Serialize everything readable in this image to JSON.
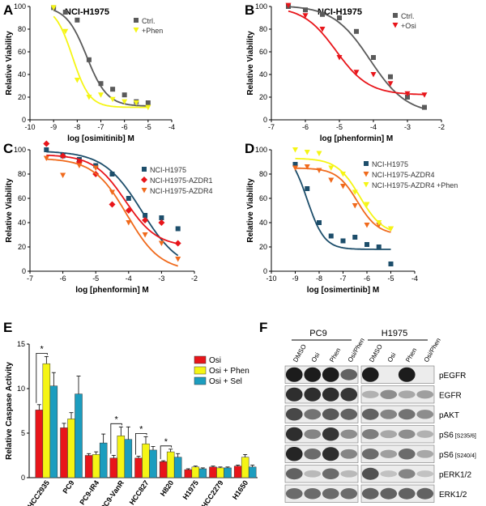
{
  "chart_data": [
    {
      "panel": "A",
      "type": "scatter",
      "title": "NCI-H1975",
      "xlabel": "log [osimitinib] M",
      "ylabel": "Relative Viability",
      "xlim": [
        -10,
        -4
      ],
      "ylim": [
        0,
        100
      ],
      "xticks": [
        "-10",
        "-9",
        "-8",
        "-7",
        "-6",
        "-5",
        "-4"
      ],
      "yticks": [
        "0",
        "20",
        "40",
        "60",
        "80",
        "100"
      ],
      "series": [
        {
          "name": "Ctrl.",
          "color": "#5a5a5a",
          "marker": "square",
          "x": [
            -9,
            -8.5,
            -8,
            -7.5,
            -7,
            -6.5,
            -6,
            -5.5,
            -5
          ],
          "y": [
            99,
            95,
            88,
            53,
            32,
            27,
            22,
            16,
            15
          ],
          "curve": {
            "top": 100,
            "bottom": 12,
            "logec50": -7.6,
            "hill": 1
          }
        },
        {
          "name": "+Phen",
          "color": "#f5f514",
          "marker": "triangle-down",
          "x": [
            -9,
            -8.5,
            -8,
            -7.5,
            -7,
            -6.5,
            -6,
            -5.5,
            -5
          ],
          "y": [
            99,
            78,
            35,
            20,
            22,
            18,
            16,
            15,
            11
          ],
          "curve": {
            "top": 100,
            "bottom": 11,
            "logec50": -8.2,
            "hill": 1.2
          }
        }
      ]
    },
    {
      "panel": "B",
      "type": "scatter",
      "title": "NCI-H1975",
      "xlabel": "log [phenformin]  M",
      "ylabel": "Relative Viability",
      "xlim": [
        -7,
        -2
      ],
      "ylim": [
        0,
        100
      ],
      "xticks": [
        "-7",
        "-6",
        "-5",
        "-4",
        "-3",
        "-2"
      ],
      "yticks": [
        "0",
        "20",
        "40",
        "60",
        "80",
        "100"
      ],
      "series": [
        {
          "name": "Ctrl.",
          "color": "#5a5a5a",
          "marker": "square",
          "x": [
            -6.5,
            -6,
            -5.5,
            -5,
            -4.5,
            -4,
            -3.5,
            -3,
            -2.5
          ],
          "y": [
            100,
            97,
            93,
            90,
            78,
            55,
            38,
            20,
            11
          ],
          "curve": {
            "top": 101,
            "bottom": 5,
            "logec50": -4.1,
            "hill": 0.8
          }
        },
        {
          "name": "+Osi",
          "color": "#e8151a",
          "marker": "triangle-down",
          "x": [
            -6.5,
            -6,
            -5.5,
            -5,
            -4.5,
            -4,
            -3.5,
            -3,
            -2.5
          ],
          "y": [
            101,
            92,
            80,
            55,
            42,
            40,
            32,
            23,
            22
          ],
          "curve": {
            "top": 100,
            "bottom": 22,
            "logec50": -5.1,
            "hill": 0.9
          }
        }
      ]
    },
    {
      "panel": "C",
      "type": "scatter",
      "title": "",
      "xlabel": "log [phenformin]  M",
      "ylabel": "Relative Viability",
      "xlim": [
        -7,
        -2
      ],
      "ylim": [
        0,
        100
      ],
      "xticks": [
        "-7",
        "-6",
        "-5",
        "-4",
        "-3",
        "-2"
      ],
      "yticks": [
        "0",
        "20",
        "40",
        "60",
        "80",
        "100"
      ],
      "series": [
        {
          "name": "NCI-H1975",
          "color": "#1d4e6b",
          "marker": "square",
          "x": [
            -6.5,
            -6,
            -5.5,
            -5,
            -4.5,
            -4,
            -3.5,
            -3,
            -2.5
          ],
          "y": [
            100,
            95,
            92,
            87,
            80,
            60,
            46,
            44,
            35
          ],
          "curve": {
            "top": 99,
            "bottom": 0,
            "logec50": -3.6,
            "hill": 0.75
          }
        },
        {
          "name": "NCI-H1975-AZDR1",
          "color": "#e8151a",
          "marker": "diamond",
          "x": [
            -6.5,
            -6,
            -5.5,
            -5,
            -4.5,
            -4,
            -3.5,
            -3,
            -2.5
          ],
          "y": [
            105,
            95,
            90,
            80,
            55,
            50,
            42,
            40,
            23
          ],
          "curve": {
            "top": 96,
            "bottom": 20,
            "logec50": -4.1,
            "hill": 0.9
          }
        },
        {
          "name": "NCI-H1975-AZDR4",
          "color": "#f06a1c",
          "marker": "triangle-down",
          "x": [
            -6.5,
            -6,
            -5.5,
            -5,
            -4.5,
            -4,
            -3.5,
            -3,
            -2.5
          ],
          "y": [
            93,
            79,
            87,
            85,
            65,
            40,
            30,
            23,
            10
          ],
          "curve": {
            "top": 93,
            "bottom": 0,
            "logec50": -4.05,
            "hill": 0.85
          }
        }
      ]
    },
    {
      "panel": "D",
      "type": "scatter",
      "title": "",
      "xlabel": "log [osimertinib]  M",
      "ylabel": "Relative Viability",
      "xlim": [
        -10,
        -4
      ],
      "ylim": [
        0,
        100
      ],
      "xticks": [
        "-10",
        "-9",
        "-8",
        "-7",
        "-6",
        "-5",
        "-4"
      ],
      "yticks": [
        "0",
        "20",
        "40",
        "60",
        "80",
        "100"
      ],
      "series": [
        {
          "name": "NCI-H1975",
          "color": "#1d4e6b",
          "marker": "square",
          "x": [
            -9,
            -8.5,
            -8,
            -7.5,
            -7,
            -6.5,
            -6,
            -5.5,
            -5
          ],
          "y": [
            88,
            68,
            40,
            29,
            25,
            28,
            22,
            20,
            6
          ],
          "curve": {
            "top": 100,
            "bottom": 18,
            "logec50": -8.5,
            "hill": 1.2
          }
        },
        {
          "name": "NCI-H1975-AZDR4",
          "color": "#f06a1c",
          "marker": "triangle-down",
          "x": [
            -9,
            -8.5,
            -8,
            -7.5,
            -7,
            -6.5,
            -6,
            -5.5,
            -5
          ],
          "y": [
            85,
            86,
            83,
            75,
            70,
            54,
            38,
            38,
            35
          ],
          "curve": {
            "top": 85,
            "bottom": 30,
            "logec50": -6.4,
            "hill": 1
          }
        },
        {
          "name": "NCI-H1975-AZDR4 +Phen",
          "color": "#f5f514",
          "marker": "triangle-down",
          "x": [
            -9,
            -8.5,
            -8,
            -7.5,
            -7,
            -6.5,
            -6,
            -5.5,
            -5
          ],
          "y": [
            100,
            98,
            97,
            85,
            80,
            65,
            55,
            40,
            35
          ],
          "curve": {
            "top": 93,
            "bottom": 30,
            "logec50": -6.3,
            "hill": 0.9
          }
        }
      ]
    },
    {
      "panel": "E",
      "type": "bar",
      "title": "",
      "xlabel": "",
      "ylabel": "Relative Caspase Activity",
      "ylim": [
        0,
        15
      ],
      "yticks": [
        "0",
        "5",
        "10",
        "15"
      ],
      "categories": [
        "HCC2935",
        "PC9",
        "PC9-IR4",
        "PC9-VanR",
        "HCC827",
        "H820",
        "H1975",
        "HCC2279",
        "H1650"
      ],
      "significance": [
        {
          "category": "HCC2935",
          "label": "*"
        },
        {
          "category": "PC9-VanR",
          "label": "*"
        },
        {
          "category": "HCC827",
          "label": "*"
        },
        {
          "category": "H820",
          "label": "*"
        }
      ],
      "series": [
        {
          "name": "Osi",
          "color": "#e8151a",
          "values": [
            7.6,
            5.6,
            2.5,
            2.2,
            2.2,
            1.8,
            0.9,
            1.2,
            1.3
          ],
          "errors": [
            0.6,
            0.5,
            0.2,
            0.3,
            0.2,
            0.1,
            0.1,
            0.1,
            0.1
          ]
        },
        {
          "name": "Osi + Phen",
          "color": "#f5f514",
          "values": [
            12.8,
            6.6,
            2.6,
            4.7,
            3.8,
            2.9,
            1.2,
            1.1,
            2.3
          ],
          "errors": [
            0.8,
            0.7,
            0.3,
            1.0,
            0.8,
            0.3,
            0.1,
            0.1,
            0.3
          ]
        },
        {
          "name": "Osi + Sel",
          "color": "#1c9dbf",
          "values": [
            10.3,
            9.4,
            3.9,
            4.3,
            3.1,
            2.3,
            1.0,
            1.1,
            1.2
          ],
          "errors": [
            1.5,
            2.0,
            1.0,
            1.4,
            0.4,
            0.4,
            0.1,
            0.1,
            0.2
          ]
        }
      ]
    }
  ],
  "labels": {
    "panel_a": "A",
    "panel_b": "B",
    "panel_c": "C",
    "panel_d": "D",
    "panel_e": "E",
    "panel_f": "F"
  },
  "blot": {
    "group_left": "PC9",
    "group_right": "H1975",
    "lanes": [
      "DMSO",
      "Osi",
      "Phen",
      "Osi/Phen",
      "DMSO",
      "Osi",
      "Phen",
      "Osi/Phen"
    ],
    "rows": [
      {
        "label": "pEGFR"
      },
      {
        "label": "EGFR"
      },
      {
        "label": "pAKT"
      },
      {
        "label": "pS6",
        "sub": "[S235/6]"
      },
      {
        "label": "pS6",
        "sub": "[S240/4]"
      },
      {
        "label": "pERK1/2"
      },
      {
        "label": "ERK1/2"
      }
    ]
  }
}
